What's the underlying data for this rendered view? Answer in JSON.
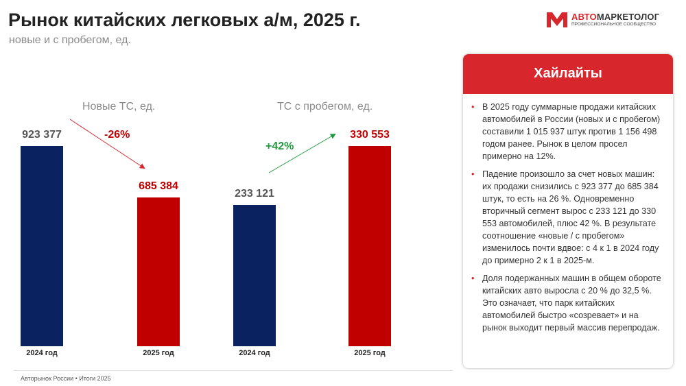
{
  "header": {
    "title": "Рынок китайских легковых а/м, 2025 г.",
    "subtitle": "новые и с пробегом, ед."
  },
  "logo": {
    "name_red": "АВТО",
    "name_dark": "МАРКЕТОЛОГ",
    "tagline": "ПРОФЕССИОНАЛЬНОЕ СООБЩЕСТВО"
  },
  "colors": {
    "bar_2024": "#0a2260",
    "bar_2025": "#c00000",
    "negative": "#c00000",
    "positive": "#1f9a3f",
    "accent": "#d7262c"
  },
  "chart_data": {
    "type": "bar",
    "groups": [
      {
        "label": "Новые ТС, ед.",
        "categories": [
          "2024 год",
          "2025 год"
        ],
        "values": [
          923377,
          685384
        ],
        "value_labels": [
          "923 377",
          "685 384"
        ],
        "change": "-26%"
      },
      {
        "label": "ТС с пробегом, ед.",
        "categories": [
          "2024 год",
          "2025 год"
        ],
        "values": [
          233121,
          330553
        ],
        "value_labels": [
          "233 121",
          "330 553"
        ],
        "change": "+42%"
      }
    ],
    "scale": "independent per group",
    "grid": false
  },
  "highlights": {
    "title": "Хайлайты",
    "items": [
      "В 2025 году суммарные продажи китайских автомобилей в России (новых и с пробегом) составили 1 015 937 штук против 1 156 498 годом ранее. Рынок в целом просел примерно на 12%.",
      "Падение произошло за счет новых машин: их продажи снизились с 923 377 до 685 384 штук, то есть на 26 %. Одновременно вторичный сегмент вырос с 233 121 до 330 553 автомобилей, плюс 42 %. В результате соотношение «новые / с пробегом» изменилось почти вдвое: с 4 к 1 в 2024 году до примерно 2 к 1 в 2025-м.",
      "Доля подержанных машин в общем обороте китайских авто выросла с 20 % до 32,5 %. Это означает, что парк китайских автомобилей быстро «созревает» и на рынок выходит первый массив перепродаж."
    ]
  },
  "footer": "Авторынок России • Итоги 2025"
}
